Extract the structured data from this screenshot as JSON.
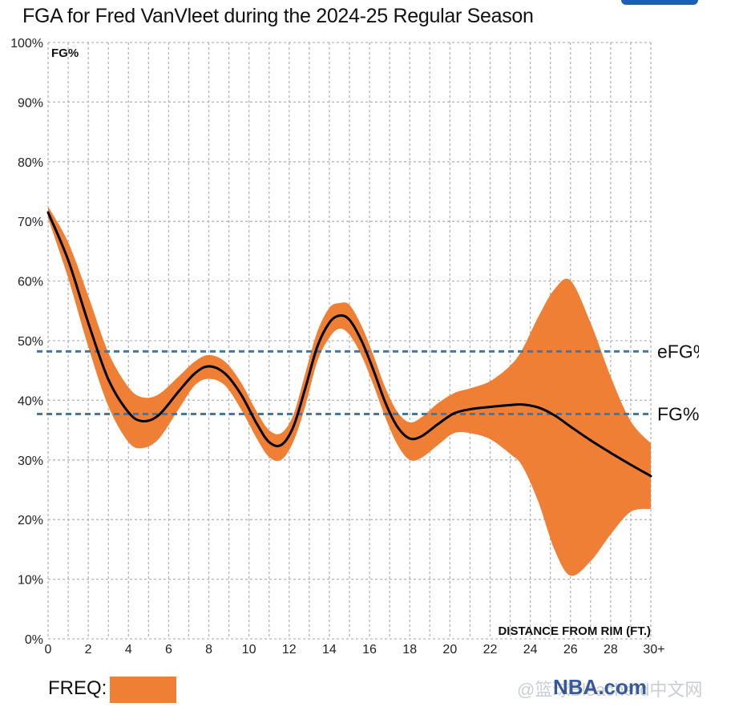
{
  "page": {
    "title": "FGA for Fred VanVleet during the 2024-25 Regular Season",
    "freq_label": "FREQ:",
    "watermark": "@篮球Bleacherd中文网",
    "brand": "NBA.com"
  },
  "colors": {
    "band": "#ef7f35",
    "line": "#000000",
    "reference": "#3f78a8",
    "grid": "#b4b4b4"
  },
  "chart_data": {
    "type": "line",
    "title": "FGA for Fred VanVleet during the 2024-25 Regular Season",
    "ylabel": "FG%",
    "xlabel": "DISTANCE FROM RIM (FT.)",
    "xlim": [
      0,
      30
    ],
    "ylim": [
      0,
      100
    ],
    "x_ticks": [
      0,
      2,
      4,
      6,
      8,
      10,
      12,
      14,
      16,
      18,
      20,
      22,
      24,
      26,
      28,
      30
    ],
    "x_tick_labels": [
      "0",
      "2",
      "4",
      "6",
      "8",
      "10",
      "12",
      "14",
      "16",
      "18",
      "20",
      "22",
      "24",
      "26",
      "28",
      "30+"
    ],
    "y_ticks": [
      0,
      10,
      20,
      30,
      40,
      50,
      60,
      70,
      80,
      90,
      100
    ],
    "y_tick_labels": [
      "0%",
      "10%",
      "20%",
      "30%",
      "40%",
      "50%",
      "60%",
      "70%",
      "80%",
      "90%",
      "100%"
    ],
    "grid": true,
    "series": [
      {
        "name": "FG%",
        "x": [
          0,
          1,
          2,
          3,
          4,
          4.7,
          5.5,
          6.5,
          7.3,
          8,
          8.8,
          9.6,
          10.4,
          11,
          11.6,
          12.2,
          12.8,
          13.4,
          14,
          14.5,
          15,
          15.6,
          16.2,
          16.8,
          17.4,
          18,
          18.6,
          19.4,
          20.2,
          21,
          22,
          23,
          23.6,
          24.4,
          25.2,
          26,
          27,
          28,
          29,
          30
        ],
        "y": [
          71.5,
          63.5,
          53,
          43.5,
          38,
          36.5,
          37.5,
          41.5,
          44.5,
          45.7,
          44.5,
          41,
          36,
          33,
          32.5,
          35.5,
          42,
          49,
          53,
          54.2,
          53.5,
          50,
          45,
          39.5,
          35.5,
          33.6,
          34,
          36,
          37.8,
          38.5,
          38.9,
          39.2,
          39.3,
          38.8,
          37.5,
          35.6,
          33.3,
          31.2,
          29.2,
          27.3
        ]
      },
      {
        "name": "FREQ",
        "type": "area",
        "x": [
          0,
          1,
          2,
          3,
          4,
          4.7,
          5.5,
          6.5,
          7.3,
          8,
          8.8,
          9.6,
          10.4,
          11,
          11.6,
          12.2,
          12.8,
          13.4,
          14,
          14.5,
          15,
          15.6,
          16.2,
          16.8,
          17.4,
          18,
          18.6,
          19.4,
          20.2,
          21,
          22,
          23,
          23.6,
          24.4,
          25.2,
          26,
          27,
          28,
          29,
          30
        ],
        "upper": [
          72.5,
          66.5,
          57.5,
          48,
          42.2,
          40.5,
          41,
          44,
          46.5,
          47.6,
          46.5,
          43,
          38,
          35,
          34.5,
          37.5,
          44.5,
          51.5,
          55.5,
          56.3,
          56,
          52.5,
          47.5,
          42,
          38,
          36.3,
          37.2,
          39.5,
          41.2,
          42,
          43.2,
          45.8,
          48.5,
          54,
          58.6,
          60.1,
          53,
          44,
          36.5,
          32.8
        ],
        "lower": [
          70.5,
          60.5,
          49,
          39,
          33,
          32,
          33.5,
          38.5,
          42.5,
          43.6,
          42.5,
          38.5,
          33.5,
          30.5,
          30,
          33,
          39,
          46.5,
          50.5,
          52,
          51,
          47.5,
          42.5,
          37,
          32.5,
          30,
          30.4,
          32.5,
          34.5,
          34.5,
          33.5,
          31,
          29,
          23,
          15,
          10.6,
          13,
          17.5,
          21.3,
          21.8
        ]
      }
    ],
    "reference_lines": [
      {
        "name": "eFG%",
        "label": "eFG%",
        "value": 48.2
      },
      {
        "name": "FG%",
        "label": "FG%",
        "value": 37.7
      }
    ]
  }
}
